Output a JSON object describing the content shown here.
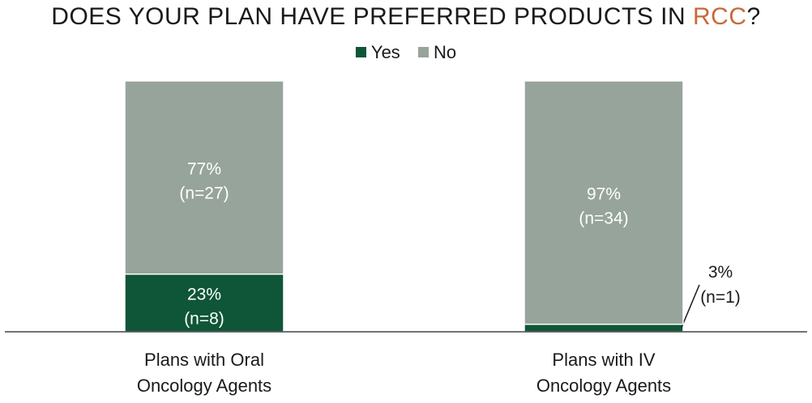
{
  "chart_data": {
    "type": "bar",
    "stacked": true,
    "title_parts": [
      "DOES YOUR PLAN HAVE PREFERRED PRODUCTS IN ",
      "RCC",
      "?"
    ],
    "categories": [
      [
        "Plans with Oral",
        "Oncology Agents"
      ],
      [
        "Plans with IV",
        "Oncology Agents"
      ]
    ],
    "series": [
      {
        "name": "Yes",
        "color": "#0f5638",
        "values": [
          23,
          3
        ],
        "labels": [
          "23%",
          "3%"
        ],
        "n_labels": [
          "(n=8)",
          "(n=1)"
        ]
      },
      {
        "name": "No",
        "color": "#97a49b",
        "values": [
          77,
          97
        ],
        "labels": [
          "77%",
          "97%"
        ],
        "n_labels": [
          "(n=27)",
          "(n=34)"
        ]
      }
    ],
    "ylim": [
      0,
      100
    ],
    "grid": false,
    "legend_position": "top-center",
    "colors": {
      "title_highlight": "#c8693a"
    }
  }
}
